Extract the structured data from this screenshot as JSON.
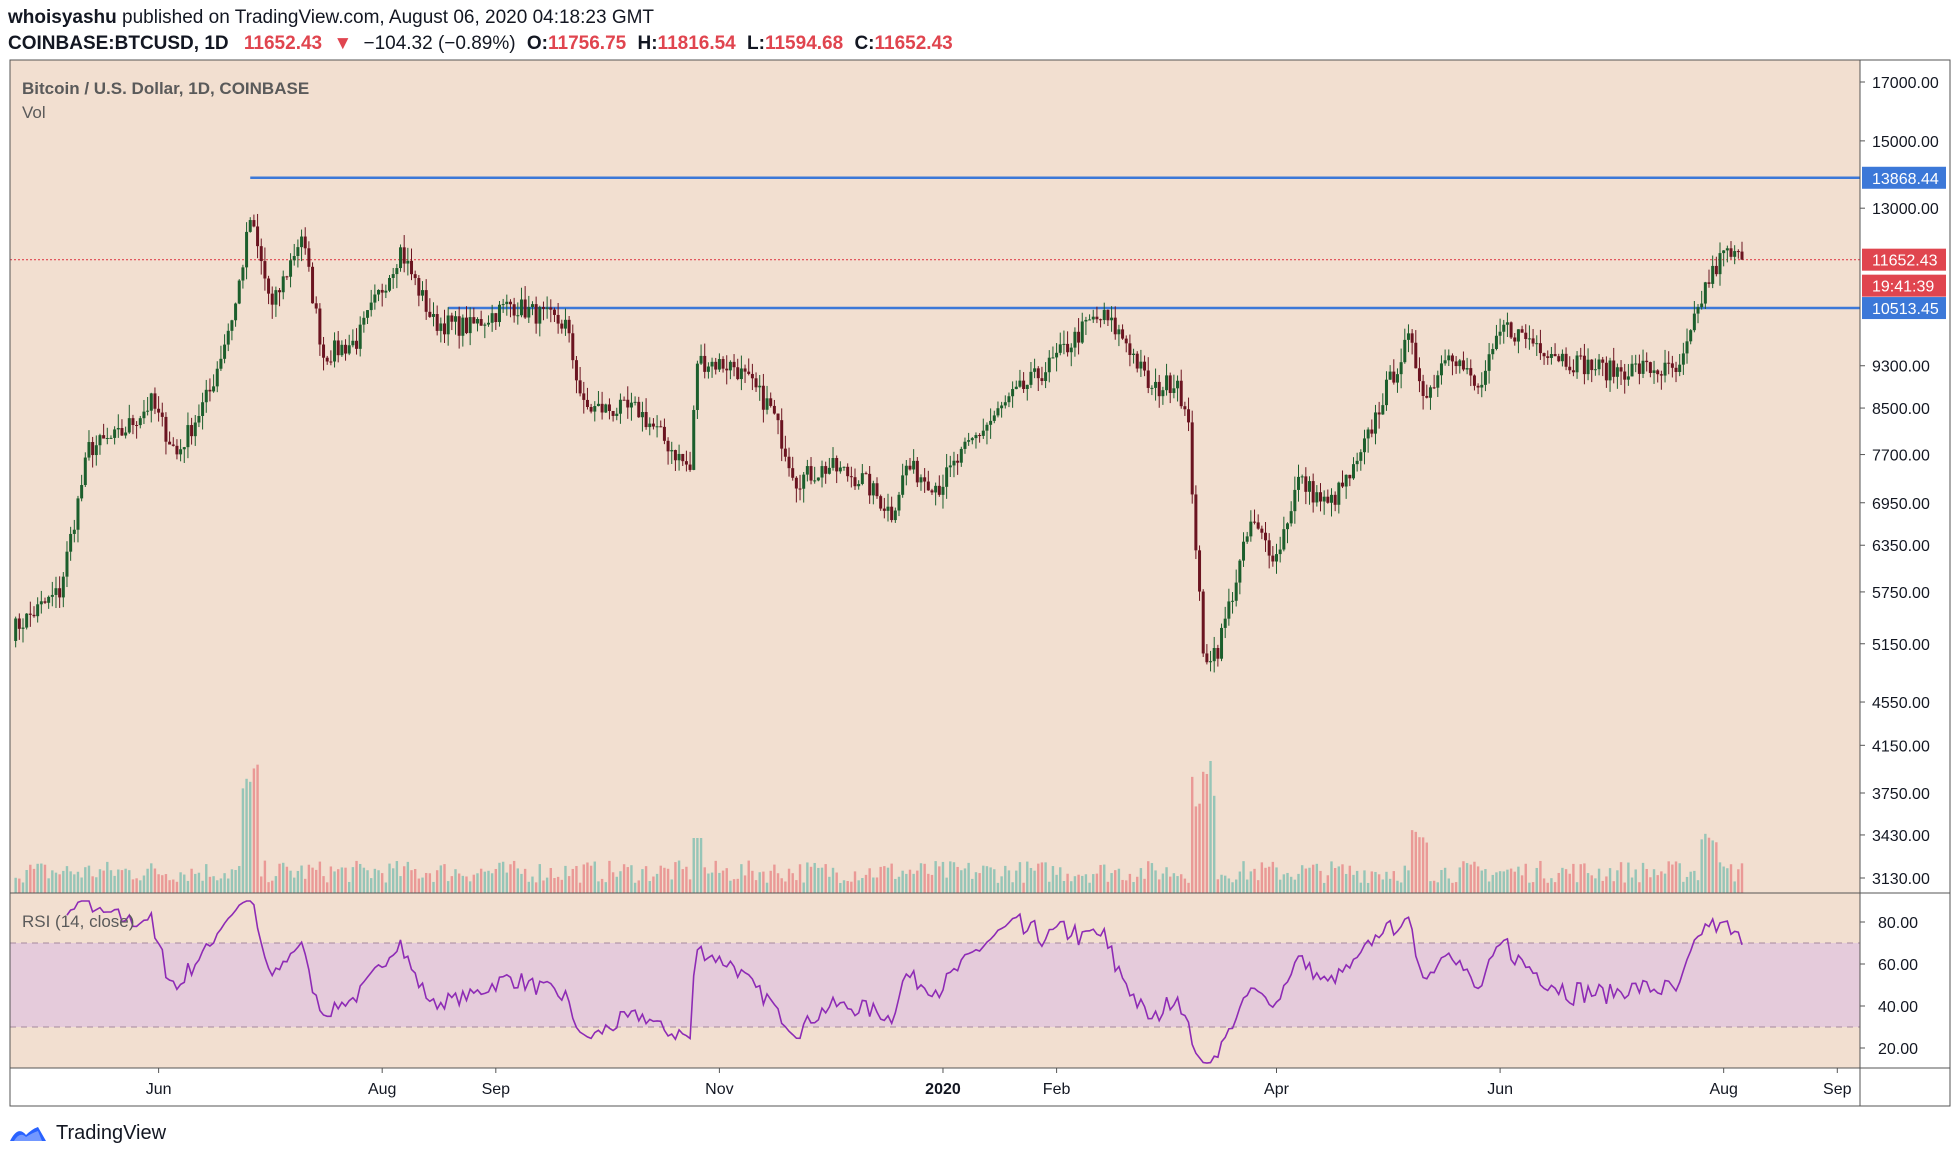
{
  "header": {
    "user": "whoisyashu",
    "published_text": "published on TradingView.com, August 06, 2020 04:18:23 GMT",
    "symbol": "COINBASE:BTCUSD, 1D",
    "last": "11652.43",
    "change": "−104.32 (−0.89%)",
    "o_label": "O:",
    "o_value": "11756.75",
    "h_label": "H:",
    "h_value": "11816.54",
    "l_label": "L:",
    "l_value": "11594.68",
    "c_label": "C:",
    "c_value": "11652.43"
  },
  "footer": {
    "brand": "TradingView"
  },
  "colors": {
    "background": "#f2dfd0",
    "up": "#26a69a",
    "down": "#e0454f",
    "candle": "#1c5e2c",
    "candle_down": "#6b1420",
    "level": "#3c78d8",
    "price_line": "#e0454f",
    "rsi_line": "#8e2bb5",
    "rsi_band": "#e3c8dd"
  },
  "chart_data": {
    "type": "candlestick",
    "title": "Bitcoin / U.S. Dollar, 1D, COINBASE",
    "subtitle": "Vol",
    "y_axis": {
      "scale": "log",
      "ticks": [
        "17000.00",
        "15000.00",
        "13000.00",
        "9300.00",
        "8500.00",
        "7700.00",
        "6950.00",
        "6350.00",
        "5750.00",
        "5150.00",
        "4550.00",
        "4150.00",
        "3750.00",
        "3430.00",
        "3130.00"
      ]
    },
    "x_axis": {
      "ticks": [
        "Jun",
        "Aug",
        "Sep",
        "Nov",
        "2020",
        "Feb",
        "Apr",
        "Jun",
        "Aug",
        "Sep"
      ]
    },
    "price_labels": {
      "resistance": "13868.44",
      "last": "11652.43",
      "countdown": "19:41:39",
      "support": "10513.45"
    },
    "levels": [
      {
        "name": "resistance",
        "value": 13868.44
      },
      {
        "name": "support",
        "value": 10513.45
      },
      {
        "name": "last",
        "value": 11652.43
      }
    ],
    "close_series": {
      "start": "2019-04-22",
      "end": "2020-08-06",
      "anchors": [
        [
          "2019-04-22",
          5300
        ],
        [
          "2019-05-05",
          5750
        ],
        [
          "2019-05-13",
          7800
        ],
        [
          "2019-05-21",
          8000
        ],
        [
          "2019-05-30",
          8600
        ],
        [
          "2019-06-06",
          7700
        ],
        [
          "2019-06-15",
          8800
        ],
        [
          "2019-06-22",
          10600
        ],
        [
          "2019-06-26",
          12700
        ],
        [
          "2019-07-02",
          10500
        ],
        [
          "2019-07-10",
          12300
        ],
        [
          "2019-07-16",
          9500
        ],
        [
          "2019-07-25",
          9800
        ],
        [
          "2019-08-06",
          11900
        ],
        [
          "2019-08-15",
          10200
        ],
        [
          "2019-08-25",
          10100
        ],
        [
          "2019-09-05",
          10600
        ],
        [
          "2019-09-20",
          10150
        ],
        [
          "2019-09-25",
          8500
        ],
        [
          "2019-10-10",
          8450
        ],
        [
          "2019-10-24",
          7450
        ],
        [
          "2019-10-26",
          9400
        ],
        [
          "2019-11-05",
          9300
        ],
        [
          "2019-11-15",
          8500
        ],
        [
          "2019-11-22",
          7300
        ],
        [
          "2019-12-01",
          7500
        ],
        [
          "2019-12-10",
          7300
        ],
        [
          "2019-12-18",
          6800
        ],
        [
          "2019-12-22",
          7500
        ],
        [
          "2019-12-31",
          7200
        ],
        [
          "2020-01-10",
          8000
        ],
        [
          "2020-01-20",
          8700
        ],
        [
          "2020-01-30",
          9300
        ],
        [
          "2020-02-10",
          10200
        ],
        [
          "2020-02-14",
          10300
        ],
        [
          "2020-02-20",
          9800
        ],
        [
          "2020-02-27",
          8800
        ],
        [
          "2020-03-05",
          9050
        ],
        [
          "2020-03-08",
          8100
        ],
        [
          "2020-03-12",
          5000
        ],
        [
          "2020-03-16",
          5100
        ],
        [
          "2020-03-25",
          6650
        ],
        [
          "2020-04-01",
          6200
        ],
        [
          "2020-04-07",
          7300
        ],
        [
          "2020-04-15",
          6900
        ],
        [
          "2020-04-23",
          7500
        ],
        [
          "2020-04-30",
          8700
        ],
        [
          "2020-05-07",
          9800
        ],
        [
          "2020-05-12",
          8700
        ],
        [
          "2020-05-18",
          9700
        ],
        [
          "2020-05-26",
          8800
        ],
        [
          "2020-06-02",
          10100
        ],
        [
          "2020-06-10",
          9800
        ],
        [
          "2020-06-20",
          9400
        ],
        [
          "2020-07-01",
          9200
        ],
        [
          "2020-07-10",
          9250
        ],
        [
          "2020-07-20",
          9170
        ],
        [
          "2020-07-27",
          11000
        ],
        [
          "2020-08-01",
          11800
        ],
        [
          "2020-08-06",
          11652
        ]
      ]
    },
    "rsi": {
      "name": "RSI (14, close)",
      "upper_band": 70,
      "lower_band": 30,
      "ticks": [
        "80.00",
        "60.00",
        "40.00",
        "20.00"
      ]
    }
  }
}
